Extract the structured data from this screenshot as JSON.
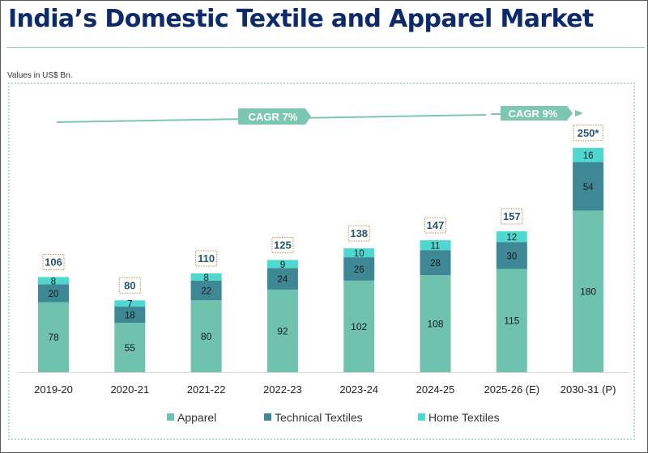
{
  "title": "India’s Domestic Textile and Apparel Market",
  "subtitle": "Values in US$ Bn.",
  "colors": {
    "title": "#0d2a6b",
    "apparel": "#6fc3ae",
    "technical": "#3e8896",
    "home": "#4fd8cf",
    "cagr": "#7cc7b2",
    "total_border": "#b98a4a"
  },
  "cagr": [
    {
      "label": "CAGR 7%"
    },
    {
      "label": "CAGR 9%"
    }
  ],
  "chart_data": {
    "type": "bar",
    "stacked": true,
    "title": "India’s Domestic Textile and Apparel Market",
    "ylabel": "Values in US$ Bn.",
    "xlabel": "",
    "categories": [
      "2019-20",
      "2020-21",
      "2021-22",
      "2022-23",
      "2023-24",
      "2024-25",
      "2025-26 (E)",
      "2030-31 (P)"
    ],
    "series": [
      {
        "name": "Apparel",
        "values": [
          78,
          55,
          80,
          92,
          102,
          108,
          115,
          180
        ]
      },
      {
        "name": "Technical Textiles",
        "values": [
          20,
          18,
          22,
          24,
          26,
          28,
          30,
          54
        ]
      },
      {
        "name": "Home Textiles",
        "values": [
          8,
          7,
          8,
          9,
          10,
          11,
          12,
          16
        ]
      }
    ],
    "totals": [
      "106",
      "80",
      "110",
      "125",
      "138",
      "147",
      "157",
      "250*"
    ],
    "ylim": [
      0,
      250
    ],
    "legend_position": "bottom"
  }
}
